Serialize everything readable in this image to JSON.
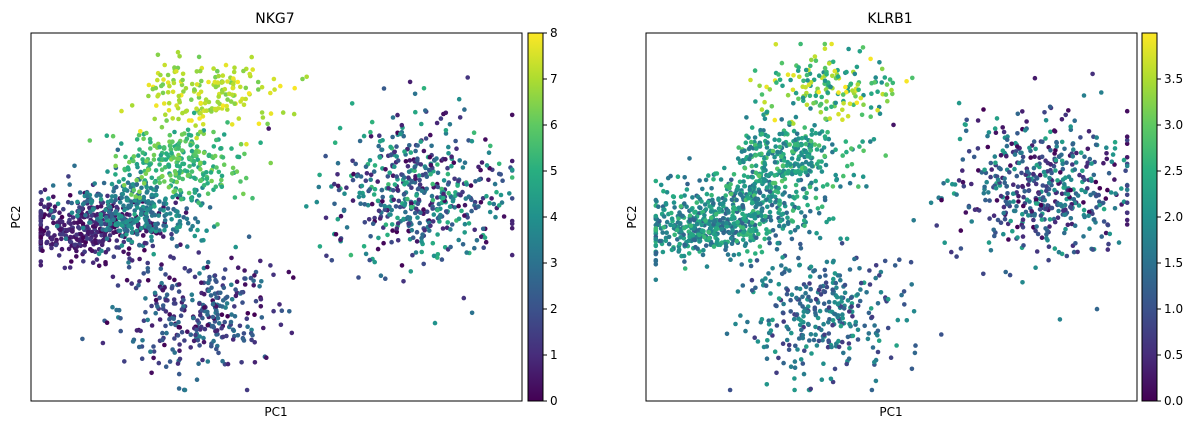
{
  "chart_data": [
    {
      "type": "scatter",
      "title": "NKG7",
      "xlabel": "PC1",
      "ylabel": "PC2",
      "grid": false,
      "colormap": "viridis",
      "colorbar": {
        "min": 0,
        "max": 8,
        "ticks": [
          "0",
          "1",
          "2",
          "3",
          "4",
          "5",
          "6",
          "7",
          "8"
        ]
      },
      "clusters": [
        {
          "name": "",
          "center": [
            0.12,
            0.53
          ],
          "spread": [
            0.07,
            0.04
          ],
          "n": 380,
          "value_range": [
            0,
            1.6
          ]
        },
        {
          "name": "",
          "center": [
            0.22,
            0.48
          ],
          "spread": [
            0.07,
            0.05
          ],
          "n": 300,
          "value_range": [
            2.5,
            4.5
          ]
        },
        {
          "name": "",
          "center": [
            0.3,
            0.35
          ],
          "spread": [
            0.06,
            0.05
          ],
          "n": 260,
          "value_range": [
            4.5,
            6.5
          ]
        },
        {
          "name": "",
          "center": [
            0.37,
            0.16
          ],
          "spread": [
            0.07,
            0.05
          ],
          "n": 180,
          "value_range": [
            6.2,
            8.0
          ]
        },
        {
          "name": "",
          "center": [
            0.79,
            0.43
          ],
          "spread": [
            0.09,
            0.1
          ],
          "n": 520,
          "value_range": [
            0,
            5.5
          ]
        },
        {
          "name": "",
          "center": [
            0.34,
            0.76
          ],
          "spread": [
            0.08,
            0.08
          ],
          "n": 330,
          "value_range": [
            0,
            3.5
          ]
        }
      ]
    },
    {
      "type": "scatter",
      "title": "KLRB1",
      "xlabel": "PC1",
      "ylabel": "PC2",
      "grid": false,
      "colormap": "viridis",
      "colorbar": {
        "min": 0,
        "max": 4,
        "ticks": [
          "0.0",
          "0.5",
          "1.0",
          "1.5",
          "2.0",
          "2.5",
          "3.0",
          "3.5"
        ]
      },
      "clusters": [
        {
          "name": "",
          "center": [
            0.12,
            0.53
          ],
          "spread": [
            0.07,
            0.04
          ],
          "n": 380,
          "value_range": [
            1.2,
            2.7
          ]
        },
        {
          "name": "",
          "center": [
            0.22,
            0.46
          ],
          "spread": [
            0.07,
            0.05
          ],
          "n": 300,
          "value_range": [
            1.2,
            2.8
          ]
        },
        {
          "name": "",
          "center": [
            0.3,
            0.33
          ],
          "spread": [
            0.06,
            0.05
          ],
          "n": 260,
          "value_range": [
            1.5,
            3.0
          ]
        },
        {
          "name": "",
          "center": [
            0.37,
            0.15
          ],
          "spread": [
            0.07,
            0.05
          ],
          "n": 180,
          "value_range": [
            1.8,
            4.0
          ]
        },
        {
          "name": "",
          "center": [
            0.81,
            0.42
          ],
          "spread": [
            0.09,
            0.1
          ],
          "n": 520,
          "value_range": [
            0,
            2.4
          ]
        },
        {
          "name": "",
          "center": [
            0.36,
            0.76
          ],
          "spread": [
            0.08,
            0.08
          ],
          "n": 330,
          "value_range": [
            0.6,
            2.3
          ]
        }
      ]
    }
  ]
}
